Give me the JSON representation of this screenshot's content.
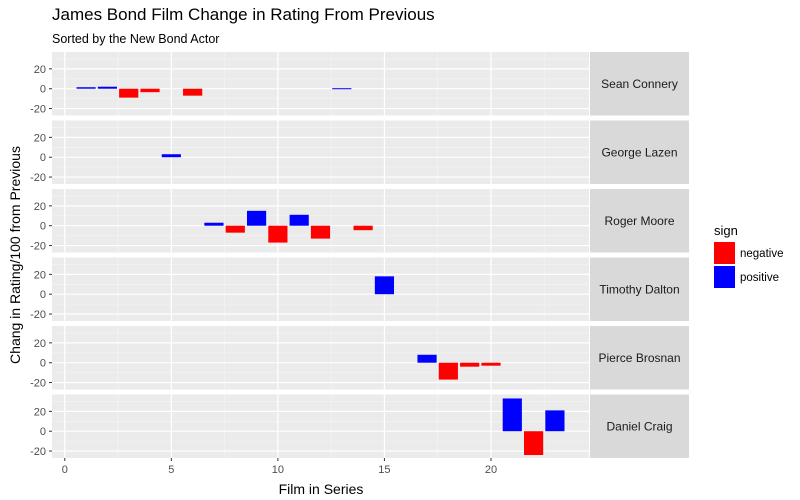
{
  "chart_data": {
    "type": "bar",
    "title": "James Bond Film Change in Rating From Previous",
    "subtitle": "Sorted by the New Bond Actor",
    "xlabel": "Film in Series",
    "ylabel": "Chang in Rating/100 from Previous",
    "xlim": [
      -0.6,
      24.6
    ],
    "ylim": [
      -27,
      37
    ],
    "x_ticks": [
      0,
      5,
      10,
      15,
      20
    ],
    "y_ticks": [
      -20,
      0,
      20
    ],
    "grid": true,
    "legend": {
      "title": "sign",
      "position": "right",
      "entries": [
        {
          "key": "negative",
          "label": "negative",
          "color": "#ff0000"
        },
        {
          "key": "positive",
          "label": "positive",
          "color": "#0000ff"
        }
      ]
    },
    "panels": [
      {
        "actor": "Sean Connery",
        "bars": [
          {
            "x": 1,
            "y": 1.5,
            "sign": "positive"
          },
          {
            "x": 2,
            "y": 2,
            "sign": "positive"
          },
          {
            "x": 3,
            "y": -9,
            "sign": "negative"
          },
          {
            "x": 4,
            "y": -3.5,
            "sign": "negative"
          },
          {
            "x": 6,
            "y": -7,
            "sign": "negative"
          },
          {
            "x": 13,
            "y": 0.5,
            "sign": "positive"
          }
        ]
      },
      {
        "actor": "George Lazen",
        "bars": [
          {
            "x": 5,
            "y": 3,
            "sign": "positive"
          }
        ]
      },
      {
        "actor": "Roger Moore",
        "bars": [
          {
            "x": 7,
            "y": 3,
            "sign": "positive"
          },
          {
            "x": 8,
            "y": -7,
            "sign": "negative"
          },
          {
            "x": 9,
            "y": 15,
            "sign": "positive"
          },
          {
            "x": 10,
            "y": -17,
            "sign": "negative"
          },
          {
            "x": 11,
            "y": 11,
            "sign": "positive"
          },
          {
            "x": 12,
            "y": -13,
            "sign": "negative"
          },
          {
            "x": 14,
            "y": -4.5,
            "sign": "negative"
          }
        ]
      },
      {
        "actor": "Timothy Dalton",
        "bars": [
          {
            "x": 15,
            "y": 18,
            "sign": "positive"
          }
        ]
      },
      {
        "actor": "Pierce Brosnan",
        "bars": [
          {
            "x": 17,
            "y": 8,
            "sign": "positive"
          },
          {
            "x": 18,
            "y": -17,
            "sign": "negative"
          },
          {
            "x": 19,
            "y": -4,
            "sign": "negative"
          },
          {
            "x": 20,
            "y": -3,
            "sign": "negative"
          }
        ]
      },
      {
        "actor": "Daniel Craig",
        "bars": [
          {
            "x": 21,
            "y": 33,
            "sign": "positive"
          },
          {
            "x": 22,
            "y": -24,
            "sign": "negative"
          },
          {
            "x": 23,
            "y": 21,
            "sign": "positive"
          }
        ]
      }
    ]
  }
}
